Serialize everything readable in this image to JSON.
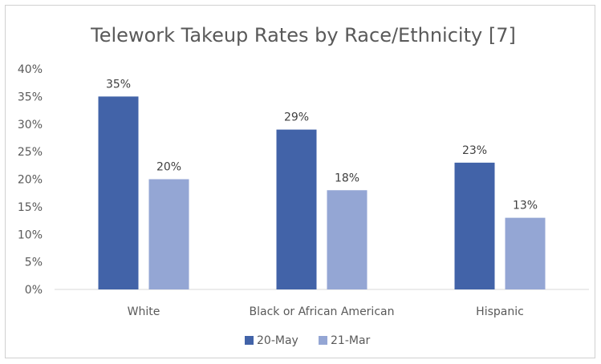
{
  "chart_data": {
    "type": "bar",
    "title": "Telework Takeup Rates by Race/Ethnicity [7]",
    "categories": [
      "White",
      "Black or African American",
      "Hispanic"
    ],
    "series": [
      {
        "name": "20-May",
        "values": [
          35,
          29,
          23
        ],
        "labels": [
          "35%",
          "29%",
          "23%"
        ],
        "color": "#4263A8"
      },
      {
        "name": "21-Mar",
        "values": [
          20,
          18,
          13
        ],
        "labels": [
          "20%",
          "18%",
          "13%"
        ],
        "color": "#94A6D4"
      }
    ],
    "ylim": [
      0,
      40
    ],
    "yticks": [
      0,
      5,
      10,
      15,
      20,
      25,
      30,
      35,
      40
    ],
    "ytick_labels": [
      "0%",
      "5%",
      "10%",
      "15%",
      "20%",
      "25%",
      "30%",
      "35%",
      "40%"
    ],
    "xlabel": "",
    "ylabel": "",
    "grid": false,
    "legend_position": "bottom"
  }
}
